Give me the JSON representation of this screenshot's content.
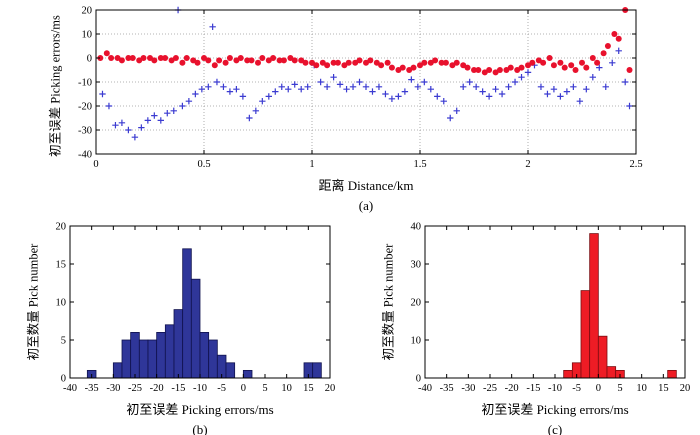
{
  "figure": {
    "background": "#ffffff"
  },
  "charts": [
    {
      "id": "a",
      "type": "scatter",
      "caption": "(a)",
      "xlabel": "距离 Distance/km",
      "ylabel": "初至误差 Picking errors/ms",
      "xlim": [
        0,
        2.5
      ],
      "ylim": [
        -40,
        20
      ],
      "xticks": [
        0,
        0.5,
        1,
        1.5,
        2,
        2.5
      ],
      "yticks": [
        20,
        10,
        0,
        -10,
        -20,
        -30,
        -40
      ],
      "grid": true,
      "series": [
        {
          "name": "blue_plus",
          "marker": "plus",
          "color": "#3b3bd1",
          "points": [
            [
              0.03,
              -15
            ],
            [
              0.06,
              -20
            ],
            [
              0.09,
              -28
            ],
            [
              0.12,
              -27
            ],
            [
              0.15,
              -30
            ],
            [
              0.18,
              -33
            ],
            [
              0.21,
              -29
            ],
            [
              0.24,
              -26
            ],
            [
              0.27,
              -24
            ],
            [
              0.3,
              -26
            ],
            [
              0.33,
              -23
            ],
            [
              0.36,
              -22
            ],
            [
              0.38,
              20
            ],
            [
              0.4,
              -20
            ],
            [
              0.43,
              -18
            ],
            [
              0.46,
              -15
            ],
            [
              0.49,
              -13
            ],
            [
              0.52,
              -12
            ],
            [
              0.54,
              13
            ],
            [
              0.56,
              -10
            ],
            [
              0.59,
              -12
            ],
            [
              0.62,
              -14
            ],
            [
              0.65,
              -13
            ],
            [
              0.68,
              -16
            ],
            [
              0.71,
              -25
            ],
            [
              0.74,
              -22
            ],
            [
              0.77,
              -18
            ],
            [
              0.8,
              -16
            ],
            [
              0.83,
              -14
            ],
            [
              0.86,
              -12
            ],
            [
              0.89,
              -13
            ],
            [
              0.92,
              -11
            ],
            [
              0.95,
              -13
            ],
            [
              0.98,
              -12
            ],
            [
              1.01,
              -3
            ],
            [
              1.04,
              -10
            ],
            [
              1.07,
              -12
            ],
            [
              1.1,
              -8
            ],
            [
              1.13,
              -11
            ],
            [
              1.16,
              -13
            ],
            [
              1.19,
              -12
            ],
            [
              1.22,
              -10
            ],
            [
              1.25,
              -12
            ],
            [
              1.28,
              -14
            ],
            [
              1.31,
              -12
            ],
            [
              1.34,
              -15
            ],
            [
              1.37,
              -17
            ],
            [
              1.4,
              -16
            ],
            [
              1.43,
              -14
            ],
            [
              1.46,
              -9
            ],
            [
              1.49,
              -12
            ],
            [
              1.52,
              -10
            ],
            [
              1.55,
              -13
            ],
            [
              1.58,
              -16
            ],
            [
              1.61,
              -18
            ],
            [
              1.64,
              -25
            ],
            [
              1.67,
              -22
            ],
            [
              1.7,
              -12
            ],
            [
              1.73,
              -10
            ],
            [
              1.76,
              -12
            ],
            [
              1.79,
              -14
            ],
            [
              1.82,
              -16
            ],
            [
              1.85,
              -13
            ],
            [
              1.88,
              -15
            ],
            [
              1.91,
              -12
            ],
            [
              1.94,
              -10
            ],
            [
              1.97,
              -8
            ],
            [
              2.0,
              -6
            ],
            [
              2.03,
              -3
            ],
            [
              2.06,
              -12
            ],
            [
              2.09,
              -15
            ],
            [
              2.12,
              -13
            ],
            [
              2.15,
              -16
            ],
            [
              2.18,
              -14
            ],
            [
              2.21,
              -12
            ],
            [
              2.24,
              -18
            ],
            [
              2.27,
              -13
            ],
            [
              2.3,
              -8
            ],
            [
              2.33,
              -4
            ],
            [
              2.36,
              -12
            ],
            [
              2.39,
              -2
            ],
            [
              2.42,
              3
            ],
            [
              2.45,
              -10
            ],
            [
              2.47,
              -20
            ]
          ]
        },
        {
          "name": "red_circle",
          "marker": "circle",
          "color": "#e8112d",
          "points": [
            [
              0.02,
              0
            ],
            [
              0.05,
              2
            ],
            [
              0.07,
              0
            ],
            [
              0.1,
              0
            ],
            [
              0.12,
              -1
            ],
            [
              0.15,
              0
            ],
            [
              0.17,
              0
            ],
            [
              0.2,
              -1
            ],
            [
              0.22,
              0
            ],
            [
              0.25,
              0
            ],
            [
              0.27,
              -1
            ],
            [
              0.3,
              0
            ],
            [
              0.32,
              0
            ],
            [
              0.35,
              -1
            ],
            [
              0.37,
              0
            ],
            [
              0.4,
              -2
            ],
            [
              0.42,
              0
            ],
            [
              0.45,
              -1
            ],
            [
              0.47,
              -2
            ],
            [
              0.5,
              0
            ],
            [
              0.52,
              -1
            ],
            [
              0.55,
              -3
            ],
            [
              0.57,
              -1
            ],
            [
              0.6,
              -2
            ],
            [
              0.62,
              0
            ],
            [
              0.65,
              -1
            ],
            [
              0.67,
              0
            ],
            [
              0.7,
              -1
            ],
            [
              0.72,
              -1
            ],
            [
              0.75,
              -2
            ],
            [
              0.77,
              0
            ],
            [
              0.8,
              -1
            ],
            [
              0.82,
              0
            ],
            [
              0.85,
              -1
            ],
            [
              0.87,
              -1
            ],
            [
              0.9,
              0
            ],
            [
              0.92,
              -1
            ],
            [
              0.95,
              -1
            ],
            [
              0.97,
              -2
            ],
            [
              1.0,
              -2
            ],
            [
              1.02,
              -3
            ],
            [
              1.05,
              -2
            ],
            [
              1.07,
              -3
            ],
            [
              1.1,
              -2
            ],
            [
              1.12,
              -2
            ],
            [
              1.15,
              -3
            ],
            [
              1.17,
              -2
            ],
            [
              1.2,
              -2
            ],
            [
              1.22,
              -1
            ],
            [
              1.25,
              -2
            ],
            [
              1.27,
              -1
            ],
            [
              1.3,
              -2
            ],
            [
              1.32,
              -3
            ],
            [
              1.35,
              -2
            ],
            [
              1.37,
              -4
            ],
            [
              1.4,
              -5
            ],
            [
              1.42,
              -4
            ],
            [
              1.45,
              -5
            ],
            [
              1.47,
              -4
            ],
            [
              1.5,
              -3
            ],
            [
              1.52,
              -2
            ],
            [
              1.55,
              -2
            ],
            [
              1.57,
              -1
            ],
            [
              1.6,
              -2
            ],
            [
              1.62,
              -2
            ],
            [
              1.65,
              -3
            ],
            [
              1.67,
              -2
            ],
            [
              1.7,
              -3
            ],
            [
              1.72,
              -4
            ],
            [
              1.75,
              -5
            ],
            [
              1.77,
              -5
            ],
            [
              1.8,
              -6
            ],
            [
              1.82,
              -5
            ],
            [
              1.85,
              -6
            ],
            [
              1.87,
              -5
            ],
            [
              1.9,
              -5
            ],
            [
              1.92,
              -4
            ],
            [
              1.95,
              -5
            ],
            [
              1.97,
              -4
            ],
            [
              2.0,
              -3
            ],
            [
              2.02,
              -2
            ],
            [
              2.05,
              -1
            ],
            [
              2.07,
              -2
            ],
            [
              2.1,
              0
            ],
            [
              2.12,
              -3
            ],
            [
              2.15,
              -2
            ],
            [
              2.17,
              -4
            ],
            [
              2.2,
              -3
            ],
            [
              2.22,
              -5
            ],
            [
              2.25,
              -2
            ],
            [
              2.27,
              -4
            ],
            [
              2.3,
              0
            ],
            [
              2.32,
              -2
            ],
            [
              2.35,
              2
            ],
            [
              2.37,
              5
            ],
            [
              2.4,
              10
            ],
            [
              2.42,
              8
            ],
            [
              2.45,
              20
            ],
            [
              2.47,
              -5
            ]
          ]
        }
      ]
    },
    {
      "id": "b",
      "type": "histogram",
      "caption": "(b)",
      "xlabel": "初至误差 Picking errors/ms",
      "ylabel": "初至数量 Pick number",
      "xlim": [
        -40,
        20
      ],
      "ylim": [
        0,
        20
      ],
      "xticks": [
        -40,
        -35,
        -30,
        -25,
        -20,
        -15,
        -10,
        -5,
        0,
        5,
        10,
        15,
        20
      ],
      "yticks": [
        0,
        5,
        10,
        15,
        20
      ],
      "grid": false,
      "bar_color": "#2f3699",
      "bar_edge": "#10124d",
      "bin_width": 2,
      "bins": [
        [
          -36,
          1
        ],
        [
          -30,
          2
        ],
        [
          -28,
          5
        ],
        [
          -26,
          6
        ],
        [
          -24,
          5
        ],
        [
          -22,
          5
        ],
        [
          -20,
          6
        ],
        [
          -18,
          7
        ],
        [
          -16,
          9
        ],
        [
          -14,
          17
        ],
        [
          -12,
          13
        ],
        [
          -10,
          6
        ],
        [
          -8,
          5
        ],
        [
          -6,
          3
        ],
        [
          -4,
          2
        ],
        [
          0,
          1
        ],
        [
          14,
          2
        ],
        [
          16,
          2
        ]
      ]
    },
    {
      "id": "c",
      "type": "histogram",
      "caption": "(c)",
      "xlabel": "初至误差 Picking errors/ms",
      "ylabel": "初至数量 Pick number",
      "xlim": [
        -40,
        20
      ],
      "ylim": [
        0,
        40
      ],
      "xticks": [
        -40,
        -35,
        -30,
        -25,
        -20,
        -15,
        -10,
        -5,
        0,
        5,
        10,
        15,
        20
      ],
      "yticks": [
        0,
        10,
        20,
        30,
        40
      ],
      "grid": false,
      "bar_color": "#ee1c25",
      "bar_edge": "#7a0c10",
      "bin_width": 2,
      "bins": [
        [
          -8,
          2
        ],
        [
          -6,
          4
        ],
        [
          -4,
          23
        ],
        [
          -2,
          38
        ],
        [
          0,
          11
        ],
        [
          2,
          3
        ],
        [
          4,
          2
        ],
        [
          16,
          2
        ]
      ]
    }
  ],
  "chart_data": {
    "note": "see charts array above for full data of subplots (a) scatter, (b) histogram, (c) histogram"
  }
}
